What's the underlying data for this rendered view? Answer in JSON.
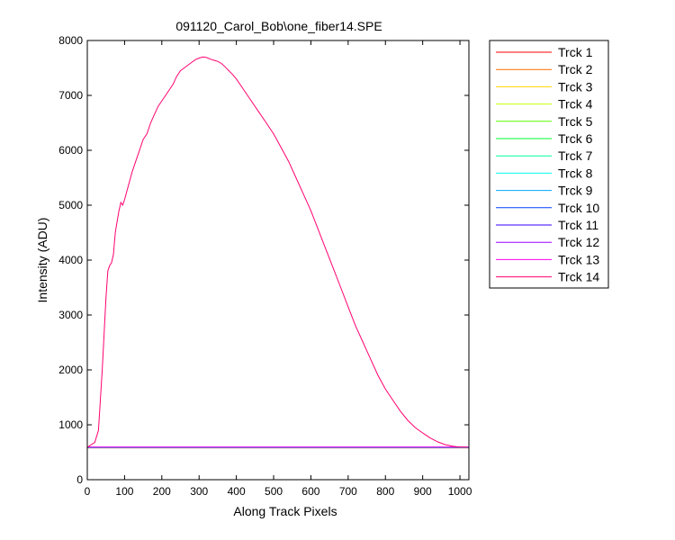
{
  "chart_data": {
    "type": "line",
    "title": "091120_Carol_Bob\\one_fiber14.SPE",
    "xlabel": "Along Track Pixels",
    "ylabel": "Intensity (ADU)",
    "xlim": [
      0,
      1024
    ],
    "ylim": [
      0,
      8000
    ],
    "xticks": [
      0,
      100,
      200,
      300,
      400,
      500,
      600,
      700,
      800,
      900,
      1000
    ],
    "yticks": [
      0,
      1000,
      2000,
      3000,
      4000,
      5000,
      6000,
      7000,
      8000
    ],
    "grid": false,
    "legend_position": "outside-right",
    "series": [
      {
        "name": "Trck 1",
        "color": "#ff0000",
        "baseline": 580
      },
      {
        "name": "Trck 2",
        "color": "#ff6a00",
        "baseline": 582
      },
      {
        "name": "Trck 3",
        "color": "#ffd400",
        "baseline": 583
      },
      {
        "name": "Trck 4",
        "color": "#c8ff00",
        "baseline": 584
      },
      {
        "name": "Trck 5",
        "color": "#5cff00",
        "baseline": 585
      },
      {
        "name": "Trck 6",
        "color": "#00ff30",
        "baseline": 586
      },
      {
        "name": "Trck 7",
        "color": "#00ff9c",
        "baseline": 587
      },
      {
        "name": "Trck 8",
        "color": "#00ffee",
        "baseline": 588
      },
      {
        "name": "Trck 9",
        "color": "#00a8ff",
        "baseline": 589
      },
      {
        "name": "Trck 10",
        "color": "#003cff",
        "baseline": 590
      },
      {
        "name": "Trck 11",
        "color": "#3000ff",
        "baseline": 591
      },
      {
        "name": "Trck 12",
        "color": "#9c00ff",
        "baseline": 592
      },
      {
        "name": "Trck 13",
        "color": "#ff00ee",
        "baseline": 594
      },
      {
        "name": "Trck 14",
        "color": "#ff0070",
        "x": [
          0,
          20,
          30,
          40,
          50,
          55,
          60,
          65,
          70,
          75,
          80,
          85,
          90,
          95,
          100,
          110,
          120,
          130,
          140,
          150,
          160,
          170,
          180,
          190,
          200,
          210,
          220,
          230,
          240,
          250,
          260,
          270,
          280,
          290,
          300,
          310,
          320,
          330,
          340,
          350,
          360,
          370,
          380,
          390,
          400,
          420,
          440,
          460,
          480,
          500,
          520,
          540,
          560,
          580,
          600,
          620,
          640,
          660,
          680,
          700,
          720,
          740,
          760,
          780,
          800,
          820,
          840,
          860,
          880,
          900,
          920,
          940,
          960,
          980,
          1000,
          1020
        ],
        "y": [
          590,
          680,
          900,
          2000,
          3300,
          3800,
          3900,
          3950,
          4100,
          4500,
          4700,
          4900,
          5050,
          5000,
          5100,
          5350,
          5600,
          5800,
          6000,
          6200,
          6300,
          6500,
          6650,
          6800,
          6900,
          7000,
          7100,
          7200,
          7350,
          7450,
          7500,
          7550,
          7600,
          7650,
          7680,
          7700,
          7690,
          7660,
          7640,
          7620,
          7580,
          7520,
          7450,
          7380,
          7300,
          7100,
          6900,
          6700,
          6500,
          6300,
          6050,
          5800,
          5500,
          5200,
          4900,
          4550,
          4200,
          3850,
          3500,
          3150,
          2800,
          2500,
          2200,
          1900,
          1650,
          1450,
          1250,
          1080,
          950,
          850,
          760,
          690,
          640,
          610,
          595,
          590
        ]
      }
    ]
  }
}
